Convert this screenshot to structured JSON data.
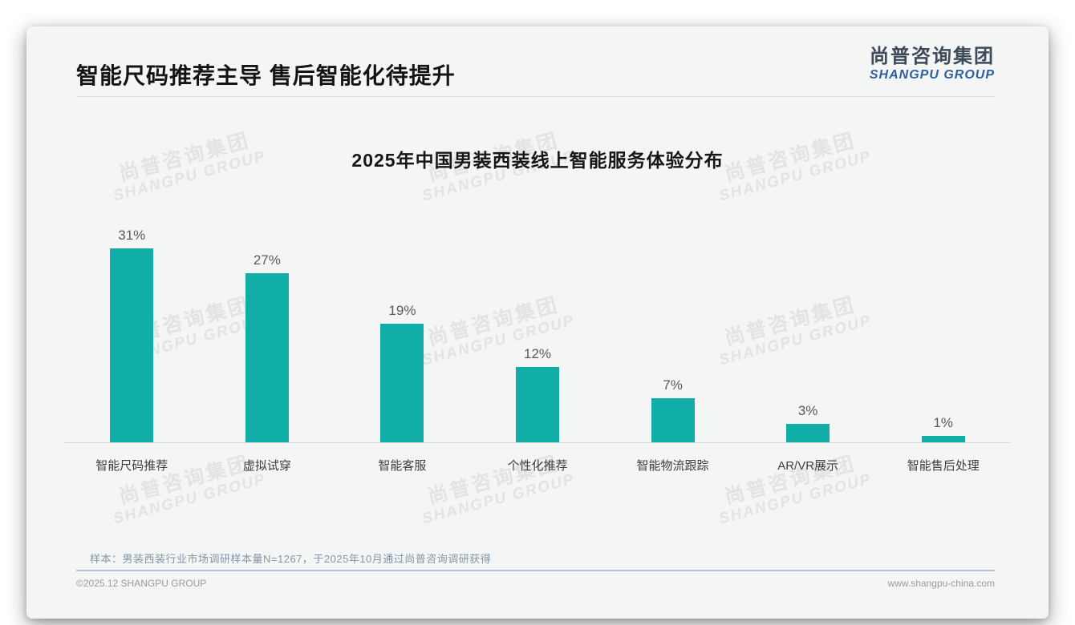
{
  "page": {
    "header": {
      "title": "智能尺码推荐主导 售后智能化待提升",
      "logo_cn": "尚普咨询集团",
      "logo_en": "SHANGPU GROUP"
    },
    "watermark": {
      "cn": "尚普咨询集团",
      "en": "SHANGPU GROUP"
    },
    "note": "样本：男装西装行业市场调研样本量N=1267，于2025年10月通过尚普咨询调研获得",
    "footer": {
      "copyright": "©2025.12 SHANGPU GROUP",
      "website": "www.shangpu-china.com"
    }
  },
  "chart_data": {
    "type": "bar",
    "title": "2025年中国男装西装线上智能服务体验分布",
    "categories": [
      "智能尺码推荐",
      "虚拟试穿",
      "智能客服",
      "个性化推荐",
      "智能物流跟踪",
      "AR/VR展示",
      "智能售后处理"
    ],
    "values": [
      31,
      27,
      19,
      12,
      7,
      3,
      1
    ],
    "value_labels": [
      "31%",
      "27%",
      "19%",
      "12%",
      "7%",
      "3%",
      "1%"
    ],
    "xlabel": "",
    "ylabel": "",
    "ylim": [
      0,
      35
    ],
    "grid": false,
    "legend_position": "none",
    "bar_color": "#10AEA7"
  }
}
